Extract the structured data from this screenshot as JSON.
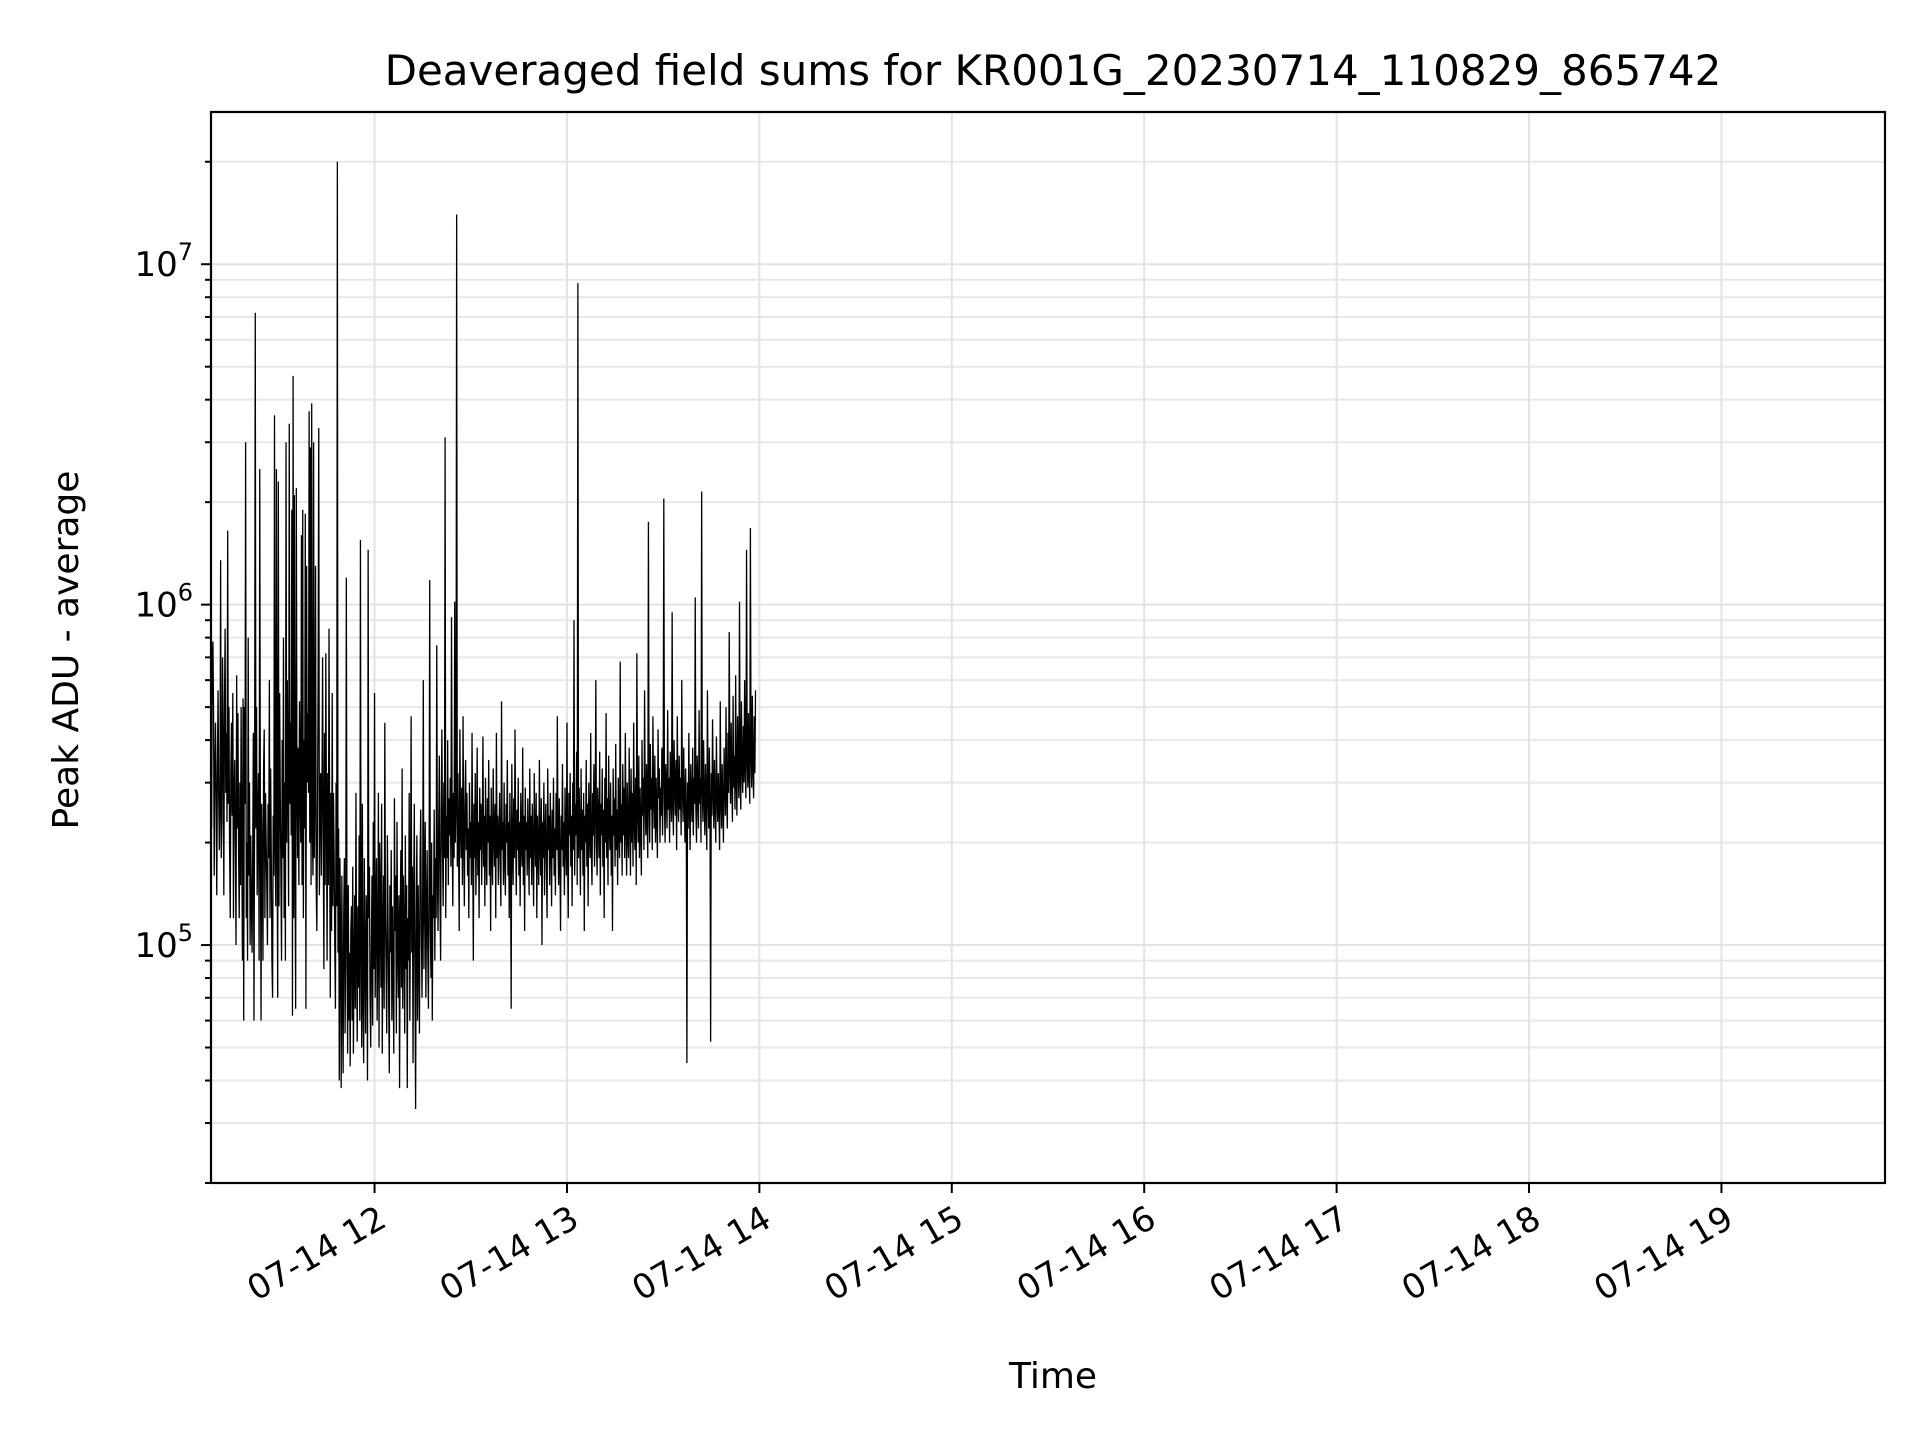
{
  "chart_data": {
    "type": "line",
    "title": "Deaveraged field sums for KR001G_20230714_110829_865742",
    "xlabel": "Time",
    "ylabel": "Peak ADU - average",
    "yscale": "log",
    "xlim": [
      "2023-07-14 11:09",
      "2023-07-14 19:51"
    ],
    "ylim": [
      20000,
      28000000
    ],
    "x_ticks": [
      "07-14 12",
      "07-14 13",
      "07-14 14",
      "07-14 15",
      "07-14 16",
      "07-14 17",
      "07-14 18",
      "07-14 19"
    ],
    "y_ticks": [
      {
        "base": "10",
        "exp": "5",
        "value": 100000
      },
      {
        "base": "10",
        "exp": "6",
        "value": 1000000
      },
      {
        "base": "10",
        "exp": "7",
        "value": 10000000
      }
    ],
    "grid": true,
    "legend": "none",
    "line_color": "#000000",
    "series": [
      {
        "time_step_minutes": 0.2,
        "start_time": "2023-07-14 11:09",
        "values": [
          540000,
          220000,
          700000,
          780000,
          480000,
          160000,
          330000,
          450000,
          270000,
          140000,
          330000,
          560000,
          280000,
          190000,
          260000,
          1350000,
          180000,
          230000,
          700000,
          400000,
          140000,
          500000,
          850000,
          280000,
          420000,
          230000,
          1650000,
          260000,
          500000,
          190000,
          120000,
          330000,
          450000,
          240000,
          550000,
          120000,
          280000,
          350000,
          200000,
          100000,
          620000,
          220000,
          480000,
          190000,
          120000,
          300000,
          150000,
          500000,
          200000,
          90000,
          530000,
          60000,
          500000,
          260000,
          3000000,
          120000,
          200000,
          90000,
          800000,
          160000,
          300000,
          100000,
          210000,
          130000,
          95000,
          180000,
          420000,
          60000,
          280000,
          7200000,
          220000,
          500000,
          140000,
          230000,
          320000,
          90000,
          2500000,
          220000,
          60000,
          260000,
          180000,
          90000,
          330000,
          430000,
          120000,
          280000,
          200000,
          150000,
          100000,
          260000,
          180000,
          600000,
          120000,
          330000,
          180000,
          90000,
          70000,
          240000,
          160000,
          3600000,
          200000,
          130000,
          2500000,
          220000,
          70000,
          2300000,
          130000,
          550000,
          280000,
          160000,
          90000,
          400000,
          180000,
          800000,
          120000,
          300000,
          90000,
          3000000,
          200000,
          600000,
          280000,
          130000,
          3400000,
          260000,
          450000,
          210000,
          1900000,
          62000,
          4700000,
          120000,
          2100000,
          180000,
          65000,
          2200000,
          300000,
          180000,
          380000,
          150000,
          520000,
          280000,
          200000,
          1600000,
          150000,
          1900000,
          120000,
          400000,
          220000,
          1850000,
          65000,
          1300000,
          300000,
          480000,
          280000,
          3700000,
          200000,
          2900000,
          150000,
          3900000,
          220000,
          160000,
          3000000,
          180000,
          270000,
          1300000,
          150000,
          110000,
          230000,
          600000,
          3300000,
          140000,
          270000,
          320000,
          160000,
          280000,
          700000,
          200000,
          85000,
          420000,
          150000,
          720000,
          260000,
          90000,
          320000,
          150000,
          850000,
          210000,
          70000,
          280000,
          110000,
          550000,
          130000,
          280000,
          180000,
          100000,
          65000,
          300000,
          130000,
          20000000,
          95000,
          220000,
          40000,
          180000,
          110000,
          38000,
          160000,
          70000,
          42000,
          130000,
          180000,
          55000,
          90000,
          1200000,
          110000,
          48000,
          150000,
          60000,
          95000,
          44000,
          110000,
          130000,
          60000,
          170000,
          48000,
          85000,
          140000,
          65000,
          280000,
          90000,
          52000,
          130000,
          75000,
          210000,
          60000,
          1550000,
          100000,
          50000,
          260000,
          70000,
          45000,
          180000,
          90000,
          55000,
          140000,
          110000,
          40000,
          1450000,
          120000,
          170000,
          70000,
          50000,
          95000,
          160000,
          58000,
          230000,
          85000,
          550000,
          70000,
          120000,
          180000,
          60000,
          95000,
          280000,
          50000,
          200000,
          130000,
          75000,
          260000,
          48000,
          100000,
          160000,
          65000,
          450000,
          120000,
          85000,
          55000,
          210000,
          120000,
          70000,
          42000,
          150000,
          95000,
          190000,
          60000,
          130000,
          80000,
          48000,
          270000,
          110000,
          160000,
          55000,
          230000,
          100000,
          70000,
          140000,
          38000,
          120000,
          190000,
          75000,
          330000,
          65000,
          160000,
          110000,
          55000,
          210000,
          85000,
          150000,
          38000,
          120000,
          90000,
          280000,
          60000,
          130000,
          470000,
          95000,
          170000,
          45000,
          140000,
          260000,
          80000,
          33000,
          120000,
          210000,
          60000,
          150000,
          95000,
          55000,
          180000,
          250000,
          110000,
          70000,
          130000,
          600000,
          85000,
          160000,
          230000,
          70000,
          120000,
          190000,
          95000,
          65000,
          150000,
          1180000,
          110000,
          80000,
          200000,
          60000,
          140000,
          120000,
          250000,
          90000,
          180000,
          120000,
          760000,
          160000,
          110000,
          220000,
          360000,
          140000,
          90000,
          250000,
          430000,
          190000,
          130000,
          300000,
          180000,
          3100000,
          120000,
          240000,
          180000,
          400000,
          150000,
          270000,
          210000,
          310000,
          170000,
          920000,
          220000,
          130000,
          280000,
          180000,
          1020000,
          200000,
          250000,
          14000000,
          170000,
          320000,
          200000,
          110000,
          430000,
          240000,
          180000,
          290000,
          150000,
          470000,
          210000,
          130000,
          260000,
          350000,
          190000,
          280000,
          160000,
          220000,
          120000,
          300000,
          180000,
          230000,
          150000,
          420000,
          200000,
          90000,
          260000,
          180000,
          320000,
          140000,
          210000,
          380000,
          160000,
          230000,
          120000,
          290000,
          190000,
          260000,
          150000,
          220000,
          410000,
          170000,
          240000,
          130000,
          310000,
          190000,
          150000,
          270000,
          200000,
          350000,
          160000,
          240000,
          110000,
          290000,
          190000,
          150000,
          330000,
          210000,
          170000,
          260000,
          120000,
          420000,
          180000,
          240000,
          150000,
          210000,
          280000,
          170000,
          130000,
          520000,
          190000,
          230000,
          150000,
          300000,
          180000,
          140000,
          260000,
          200000,
          350000,
          160000,
          230000,
          120000,
          280000,
          190000,
          65000,
          340000,
          200000,
          150000,
          270000,
          180000,
          430000,
          210000,
          140000,
          250000,
          190000,
          310000,
          160000,
          230000,
          130000,
          280000,
          200000,
          170000,
          380000,
          150000,
          240000,
          110000,
          290000,
          190000,
          230000,
          160000,
          270000,
          200000,
          140000,
          330000,
          180000,
          240000,
          150000,
          260000,
          190000,
          130000,
          320000,
          210000,
          170000,
          280000,
          120000,
          240000,
          190000,
          150000,
          350000,
          200000,
          160000,
          270000,
          100000,
          230000,
          180000,
          300000,
          140000,
          210000,
          260000,
          170000,
          120000,
          330000,
          190000,
          240000,
          150000,
          280000,
          200000,
          130000,
          250000,
          180000,
          310000,
          160000,
          220000,
          140000,
          280000,
          190000,
          470000,
          200000,
          150000,
          270000,
          180000,
          110000,
          240000,
          190000,
          340000,
          170000,
          230000,
          140000,
          290000,
          200000,
          160000,
          450000,
          180000,
          120000,
          280000,
          210000,
          320000,
          170000,
          240000,
          130000,
          300000,
          190000,
          900000,
          160000,
          260000,
          210000,
          370000,
          150000,
          8800000,
          180000,
          290000,
          220000,
          140000,
          330000,
          190000,
          250000,
          160000,
          280000,
          110000,
          240000,
          200000,
          350000,
          170000,
          260000,
          130000,
          300000,
          220000,
          180000,
          420000,
          190000,
          150000,
          280000,
          210000,
          340000,
          170000,
          240000,
          600000,
          200000,
          160000,
          290000,
          230000,
          180000,
          370000,
          140000,
          260000,
          210000,
          330000,
          170000,
          250000,
          120000,
          310000,
          200000,
          480000,
          180000,
          270000,
          150000,
          360000,
          220000,
          190000,
          300000,
          160000,
          240000,
          110000,
          330000,
          210000,
          270000,
          170000,
          390000,
          190000,
          250000,
          150000,
          310000,
          220000,
          180000,
          680000,
          200000,
          260000,
          160000,
          340000,
          210000,
          290000,
          180000,
          420000,
          230000,
          160000,
          300000,
          210000,
          180000,
          380000,
          240000,
          160000,
          330000,
          200000,
          280000,
          170000,
          450000,
          230000,
          190000,
          310000,
          150000,
          720000,
          250000,
          200000,
          360000,
          180000,
          290000,
          220000,
          160000,
          400000,
          240000,
          310000,
          190000,
          560000,
          270000,
          210000,
          340000,
          230000,
          180000,
          1750000,
          260000,
          200000,
          390000,
          250000,
          310000,
          190000,
          470000,
          280000,
          220000,
          360000,
          200000,
          310000,
          240000,
          180000,
          430000,
          270000,
          330000,
          200000,
          290000,
          240000,
          380000,
          210000,
          310000,
          2050000,
          260000,
          200000,
          340000,
          280000,
          220000,
          490000,
          250000,
          310000,
          200000,
          370000,
          280000,
          230000,
          950000,
          260000,
          210000,
          400000,
          300000,
          240000,
          350000,
          190000,
          470000,
          280000,
          230000,
          360000,
          250000,
          310000,
          210000,
          600000,
          290000,
          230000,
          380000,
          270000,
          200000,
          330000,
          250000,
          45000,
          300000,
          220000,
          420000,
          260000,
          190000,
          340000,
          270000,
          230000,
          380000,
          210000,
          310000,
          260000,
          1050000,
          250000,
          200000,
          360000,
          280000,
          220000,
          490000,
          260000,
          310000,
          200000,
          2150000,
          290000,
          230000,
          400000,
          270000,
          210000,
          340000,
          250000,
          190000,
          560000,
          280000,
          220000,
          380000,
          260000,
          52000,
          320000,
          240000,
          460000,
          290000,
          220000,
          350000,
          260000,
          200000,
          410000,
          280000,
          230000,
          320000,
          250000,
          190000,
          520000,
          270000,
          220000,
          340000,
          250000,
          200000,
          380000,
          290000,
          240000,
          500000,
          270000,
          220000,
          420000,
          280000,
          830000,
          330000,
          260000,
          450000,
          300000,
          230000,
          540000,
          290000,
          360000,
          250000,
          620000,
          300000,
          240000,
          470000,
          330000,
          270000,
          1020000,
          310000,
          250000,
          520000,
          340000,
          280000,
          440000,
          300000,
          600000,
          330000,
          270000,
          1450000,
          350000,
          290000,
          480000,
          320000,
          260000,
          1680000,
          360000,
          290000,
          540000,
          330000,
          270000,
          470000,
          320000,
          560000
        ]
      }
    ]
  }
}
